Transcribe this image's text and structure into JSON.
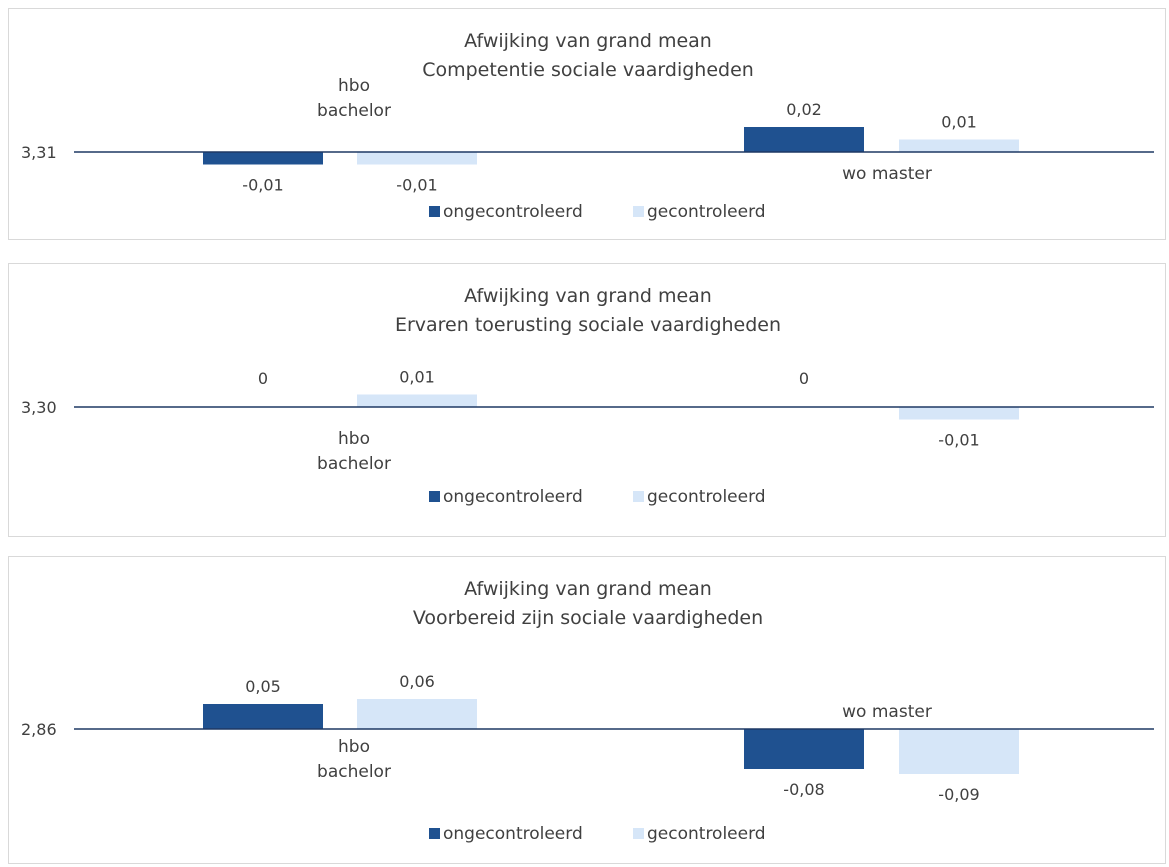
{
  "colors": {
    "ongecontroleerd": "#1f5190",
    "gecontroleerd": "#d6e6f8",
    "baseline": "#1f3864",
    "text": "#404040",
    "border": "#d9d9d9"
  },
  "legend": {
    "ongecontroleerd": "ongecontroleerd",
    "gecontroleerd": "gecontroleerd"
  },
  "chart_data": [
    {
      "type": "bar",
      "title": "Afwijking van grand mean",
      "subtitle": "Competentie sociale vaardigheden",
      "baseline_label": "3,31",
      "categories": [
        "hbo bachelor",
        "wo master"
      ],
      "series": [
        {
          "name": "ongecontroleerd",
          "values": [
            -0.01,
            0.02
          ],
          "labels": [
            "-0,01",
            "0,02"
          ]
        },
        {
          "name": "gecontroleerd",
          "values": [
            -0.01,
            0.01
          ],
          "labels": [
            "-0,01",
            "0,01"
          ]
        }
      ],
      "legend_position": "bottom"
    },
    {
      "type": "bar",
      "title": "Afwijking van grand mean",
      "subtitle": "Ervaren toerusting sociale vaardigheden",
      "baseline_label": "3,30",
      "categories": [
        "hbo bachelor",
        ""
      ],
      "series": [
        {
          "name": "ongecontroleerd",
          "values": [
            0,
            0
          ],
          "labels": [
            "0",
            "0"
          ]
        },
        {
          "name": "gecontroleerd",
          "values": [
            0.01,
            -0.01
          ],
          "labels": [
            "0,01",
            "-0,01"
          ]
        }
      ],
      "legend_position": "bottom"
    },
    {
      "type": "bar",
      "title": "Afwijking van grand mean",
      "subtitle": "Voorbereid zijn sociale vaardigheden",
      "baseline_label": "2,86",
      "categories": [
        "hbo bachelor",
        "wo master"
      ],
      "series": [
        {
          "name": "ongecontroleerd",
          "values": [
            0.05,
            -0.08
          ],
          "labels": [
            "0,05",
            "-0,08"
          ]
        },
        {
          "name": "gecontroleerd",
          "values": [
            0.06,
            -0.09
          ],
          "labels": [
            "0,06",
            "-0,09"
          ]
        }
      ],
      "legend_position": "bottom"
    }
  ]
}
